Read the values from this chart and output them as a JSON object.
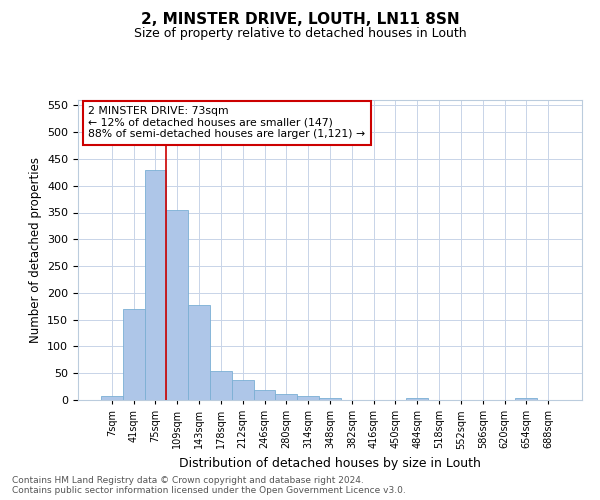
{
  "title": "2, MINSTER DRIVE, LOUTH, LN11 8SN",
  "subtitle": "Size of property relative to detached houses in Louth",
  "xlabel": "Distribution of detached houses by size in Louth",
  "ylabel": "Number of detached properties",
  "bar_labels": [
    "7sqm",
    "41sqm",
    "75sqm",
    "109sqm",
    "143sqm",
    "178sqm",
    "212sqm",
    "246sqm",
    "280sqm",
    "314sqm",
    "348sqm",
    "382sqm",
    "416sqm",
    "450sqm",
    "484sqm",
    "518sqm",
    "552sqm",
    "586sqm",
    "620sqm",
    "654sqm",
    "688sqm"
  ],
  "bar_values": [
    8,
    170,
    430,
    355,
    178,
    55,
    38,
    18,
    11,
    8,
    3,
    0,
    0,
    0,
    4,
    0,
    0,
    0,
    0,
    3,
    0
  ],
  "bar_color": "#aec6e8",
  "bar_edge_color": "#7bafd4",
  "vline_x_index": 2,
  "vline_color": "#cc0000",
  "annotation_text": "2 MINSTER DRIVE: 73sqm\n← 12% of detached houses are smaller (147)\n88% of semi-detached houses are larger (1,121) →",
  "annotation_box_color": "#ffffff",
  "annotation_box_edge": "#cc0000",
  "ylim": [
    0,
    560
  ],
  "yticks": [
    0,
    50,
    100,
    150,
    200,
    250,
    300,
    350,
    400,
    450,
    500,
    550
  ],
  "footer_line1": "Contains HM Land Registry data © Crown copyright and database right 2024.",
  "footer_line2": "Contains public sector information licensed under the Open Government Licence v3.0.",
  "background_color": "#ffffff",
  "grid_color": "#c8d4e8"
}
